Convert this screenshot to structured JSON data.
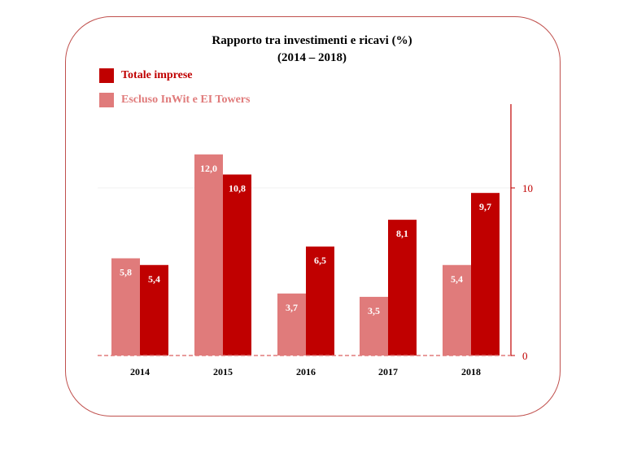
{
  "colors": {
    "primary": "#c00000",
    "secondary": "#e07b7b",
    "frame": "#c0504d"
  },
  "chart_data": {
    "type": "bar",
    "title": "Rapporto tra investimenti e ricavi (%)",
    "subtitle": "(2014 – 2018)",
    "categories": [
      "2014",
      "2015",
      "2016",
      "2017",
      "2018"
    ],
    "series": [
      {
        "name": "Escluso InWit e EI Towers",
        "values": [
          5.8,
          12.0,
          3.7,
          3.5,
          5.4
        ],
        "labels": [
          "5,8",
          "12,0",
          "3,7",
          "3,5",
          "5,4"
        ],
        "color": "#e07b7b"
      },
      {
        "name": "Totale imprese",
        "values": [
          5.4,
          10.8,
          6.5,
          8.1,
          9.7
        ],
        "labels": [
          "5,4",
          "10,8",
          "6,5",
          "8,1",
          "9,7"
        ],
        "color": "#c00000"
      }
    ],
    "yticks": [
      0,
      10
    ],
    "ylim": [
      0,
      15
    ],
    "y_axis_position": "right",
    "legend_position": "top-left"
  }
}
